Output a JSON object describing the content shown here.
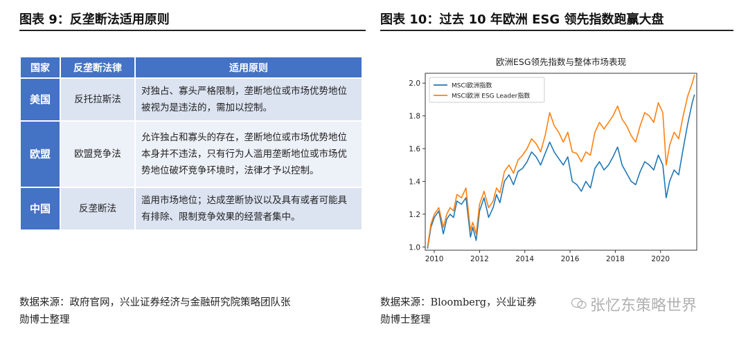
{
  "left_panel": {
    "title": "图表 9：反垄断法适用原则",
    "table": {
      "headers": [
        "国家",
        "反垄断法律",
        "适用原则"
      ],
      "rows": [
        {
          "country": "美国",
          "law": "反托拉斯法",
          "principle": "对独占、寡头严格限制，垄断地位或市场优势地位被视为是违法的，需加以控制。"
        },
        {
          "country": "欧盟",
          "law": "欧盟竞争法",
          "principle": "允许独占和寡头的存在，垄断地位或市场优势地位本身并不违法，只有行为人滥用垄断地位或市场优势地位破坏竞争环境时，法律才予以控制。"
        },
        {
          "country": "中国",
          "law": "反垄断法",
          "principle": "滥用市场地位；达成垄断协议以及具有或者可能具有排除、限制竞争效果的经营者集中。"
        }
      ]
    },
    "source_line1": "数据来源：政府官网，兴业证券经济与金融研究院策略团队张",
    "source_line2": "勋博士整理"
  },
  "right_panel": {
    "title": "图表 10：过去 10 年欧洲 ESG 领先指数跑赢大盘",
    "source_line1": "数据来源：Bloomberg，兴业证券",
    "source_line2": "勋博士整理"
  },
  "watermark": "张忆东策略世界",
  "chart_data": {
    "type": "line",
    "title": "欧洲ESG领先指数与整体市场表现",
    "xlabel": "",
    "ylabel": "",
    "xlim": [
      2009.6,
      2021.6
    ],
    "ylim": [
      0.98,
      2.06
    ],
    "xticks": [
      2010,
      2012,
      2014,
      2016,
      2018,
      2020
    ],
    "yticks": [
      1.0,
      1.2,
      1.4,
      1.6,
      1.8,
      2.0
    ],
    "legend_position": "top-left",
    "series": [
      {
        "name": "MSCI欧洲指数",
        "color": "#1f77b4",
        "x": [
          2009.7,
          2009.85,
          2010.0,
          2010.2,
          2010.4,
          2010.55,
          2010.7,
          2010.85,
          2011.0,
          2011.2,
          2011.4,
          2011.5,
          2011.6,
          2011.7,
          2011.85,
          2012.0,
          2012.2,
          2012.4,
          2012.6,
          2012.75,
          2012.9,
          2013.1,
          2013.3,
          2013.5,
          2013.7,
          2013.9,
          2014.1,
          2014.3,
          2014.5,
          2014.7,
          2014.9,
          2015.1,
          2015.3,
          2015.5,
          2015.7,
          2015.9,
          2016.1,
          2016.3,
          2016.5,
          2016.7,
          2016.9,
          2017.1,
          2017.3,
          2017.5,
          2017.7,
          2017.9,
          2018.1,
          2018.3,
          2018.5,
          2018.7,
          2018.9,
          2019.1,
          2019.3,
          2019.5,
          2019.7,
          2019.9,
          2020.1,
          2020.25,
          2020.4,
          2020.6,
          2020.8,
          2021.0,
          2021.2,
          2021.4,
          2021.5
        ],
        "values": [
          0.99,
          1.12,
          1.18,
          1.22,
          1.08,
          1.17,
          1.2,
          1.18,
          1.28,
          1.26,
          1.3,
          1.18,
          1.06,
          1.12,
          1.04,
          1.22,
          1.3,
          1.18,
          1.24,
          1.32,
          1.27,
          1.4,
          1.44,
          1.38,
          1.46,
          1.48,
          1.52,
          1.58,
          1.55,
          1.5,
          1.57,
          1.64,
          1.58,
          1.54,
          1.5,
          1.55,
          1.4,
          1.38,
          1.34,
          1.4,
          1.36,
          1.48,
          1.52,
          1.47,
          1.5,
          1.55,
          1.61,
          1.5,
          1.45,
          1.4,
          1.38,
          1.46,
          1.52,
          1.5,
          1.47,
          1.56,
          1.5,
          1.3,
          1.4,
          1.47,
          1.44,
          1.6,
          1.75,
          1.88,
          1.93
        ]
      },
      {
        "name": "MSCI欧洲 ESG Leader指数",
        "color": "#ff7f0e",
        "x": [
          2009.7,
          2009.85,
          2010.0,
          2010.2,
          2010.4,
          2010.55,
          2010.7,
          2010.85,
          2011.0,
          2011.2,
          2011.4,
          2011.5,
          2011.6,
          2011.7,
          2011.85,
          2012.0,
          2012.2,
          2012.4,
          2012.6,
          2012.75,
          2012.9,
          2013.1,
          2013.3,
          2013.5,
          2013.7,
          2013.9,
          2014.1,
          2014.3,
          2014.5,
          2014.7,
          2014.9,
          2015.1,
          2015.3,
          2015.5,
          2015.7,
          2015.9,
          2016.1,
          2016.3,
          2016.5,
          2016.7,
          2016.9,
          2017.1,
          2017.3,
          2017.5,
          2017.7,
          2017.9,
          2018.1,
          2018.3,
          2018.5,
          2018.7,
          2018.9,
          2019.1,
          2019.3,
          2019.5,
          2019.7,
          2019.9,
          2020.1,
          2020.25,
          2020.4,
          2020.6,
          2020.8,
          2021.0,
          2021.2,
          2021.4,
          2021.5
        ],
        "values": [
          1.0,
          1.14,
          1.2,
          1.24,
          1.12,
          1.2,
          1.24,
          1.22,
          1.32,
          1.3,
          1.36,
          1.22,
          1.1,
          1.15,
          1.08,
          1.26,
          1.34,
          1.24,
          1.28,
          1.36,
          1.33,
          1.46,
          1.5,
          1.45,
          1.53,
          1.56,
          1.6,
          1.66,
          1.63,
          1.58,
          1.68,
          1.82,
          1.74,
          1.7,
          1.64,
          1.7,
          1.58,
          1.57,
          1.52,
          1.58,
          1.56,
          1.7,
          1.76,
          1.72,
          1.76,
          1.8,
          1.86,
          1.78,
          1.74,
          1.68,
          1.64,
          1.74,
          1.82,
          1.8,
          1.76,
          1.88,
          1.82,
          1.5,
          1.62,
          1.7,
          1.66,
          1.8,
          1.92,
          2.0,
          2.05
        ]
      }
    ]
  }
}
